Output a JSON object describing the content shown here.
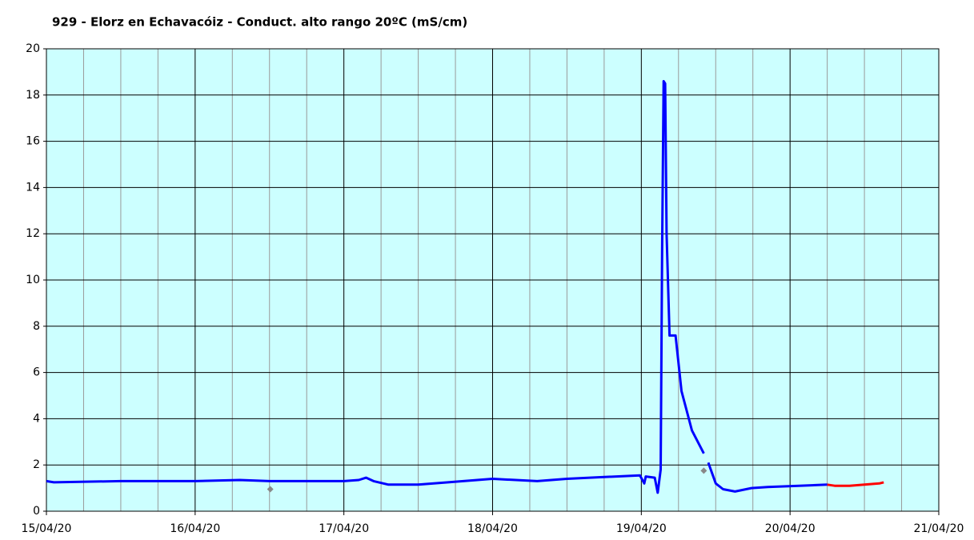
{
  "chart_data": {
    "type": "line",
    "title": "929 - Elorz en Echavacóiz - Conduct. alto rango 20ºC (mS/cm)",
    "xlim": [
      0,
      6
    ],
    "xticks": [
      {
        "value": 0,
        "label": "15/04/20"
      },
      {
        "value": 1,
        "label": "16/04/20"
      },
      {
        "value": 2,
        "label": "17/04/20"
      },
      {
        "value": 3,
        "label": "18/04/20"
      },
      {
        "value": 4,
        "label": "19/04/20"
      },
      {
        "value": 5,
        "label": "20/04/20"
      },
      {
        "value": 6,
        "label": "21/04/20"
      }
    ],
    "minor_grid_per_tick": 4,
    "ylim": [
      0,
      20
    ],
    "yticks": [
      0,
      2,
      4,
      6,
      8,
      10,
      12,
      14,
      16,
      18,
      20
    ],
    "grid": true,
    "background": "#ccffff",
    "series": [
      {
        "color": "#0000ff",
        "kind": "line",
        "x": [
          0,
          0.05,
          0.5,
          1.0,
          1.3,
          1.5,
          2.0,
          2.1,
          2.15,
          2.2,
          2.3,
          2.5,
          2.7,
          3.0,
          3.3,
          3.5,
          3.99,
          4.02,
          4.03,
          4.09,
          4.11,
          4.13,
          4.14,
          4.15,
          4.16,
          4.17,
          4.19,
          4.23,
          4.27,
          4.34,
          4.42,
          4.43,
          4.45,
          4.5,
          4.55,
          4.63,
          4.74,
          4.85,
          5.06,
          5.25
        ],
        "values": [
          1.3,
          1.25,
          1.3,
          1.3,
          1.35,
          1.3,
          1.3,
          1.35,
          1.45,
          1.3,
          1.15,
          1.15,
          1.25,
          1.4,
          1.3,
          1.4,
          1.55,
          1.2,
          1.5,
          1.45,
          0.8,
          1.8,
          11.2,
          18.6,
          18.5,
          12,
          7.6,
          7.6,
          5.2,
          3.5,
          2.5,
          null,
          2.1,
          1.2,
          0.95,
          0.85,
          1.0,
          1.05,
          1.1,
          1.15
        ]
      },
      {
        "color": "#ff0000",
        "kind": "line",
        "x": [
          5.25,
          5.3,
          5.4,
          5.5,
          5.6,
          5.63
        ],
        "values": [
          1.15,
          1.1,
          1.1,
          1.15,
          1.2,
          1.25
        ]
      },
      {
        "color": "#888888",
        "kind": "points",
        "x": [
          1.505,
          4.42
        ],
        "values": [
          0.95,
          1.75
        ]
      }
    ]
  }
}
